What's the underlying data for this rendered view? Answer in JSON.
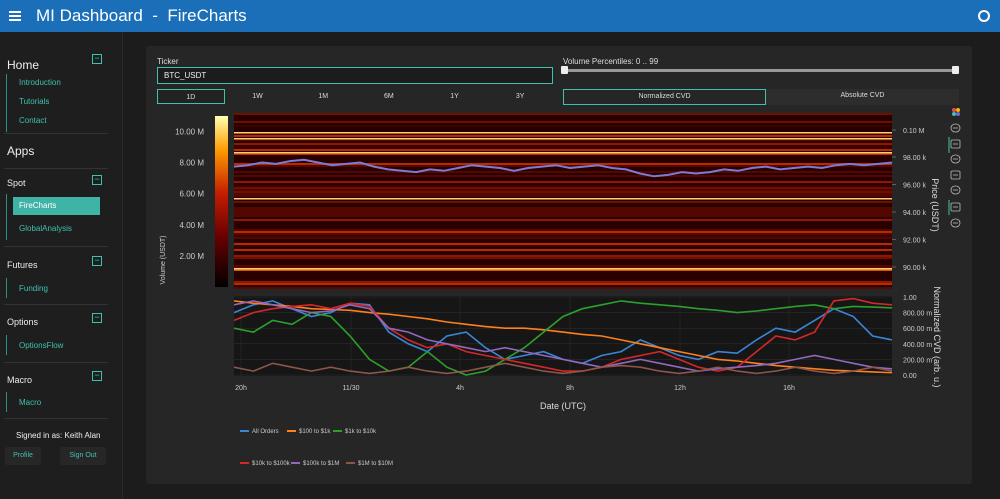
{
  "header": {
    "title": "MI Dashboard  -  FireCharts"
  },
  "sidebar": {
    "home": {
      "title": "Home",
      "links": [
        "Introduction",
        "Tutorials",
        "Contact"
      ]
    },
    "apps_title": "Apps",
    "spot": {
      "title": "Spot",
      "links": [
        "FireCharts",
        "GlobalAnalysis"
      ],
      "active": "FireCharts"
    },
    "futures": {
      "title": "Futures",
      "links": [
        "Funding"
      ]
    },
    "options": {
      "title": "Options",
      "links": [
        "OptionsFlow"
      ]
    },
    "macro": {
      "title": "Macro",
      "links": [
        "Macro"
      ]
    },
    "collapse_symbol": "−",
    "signed_in": "Signed in as: Keith Alan",
    "profile_label": "Profile",
    "signout_label": "Sign Out"
  },
  "controls": {
    "ticker_label": "Ticker",
    "ticker_value": "BTC_USDT",
    "percentile_label": "Volume Percentiles: 0 .. 99",
    "percentile_range": [
      0,
      99
    ],
    "timeframes": [
      "1D",
      "1W",
      "1M",
      "6M",
      "1Y",
      "3Y"
    ],
    "active_timeframe": "1D",
    "cvd_modes": [
      "Normalized CVD",
      "Absolute CVD"
    ],
    "active_cvd": "Normalized CVD"
  },
  "colors": {
    "accent": "#3fc1b0",
    "header": "#1a6fb8",
    "panel": "#262626"
  },
  "chart_data": [
    {
      "type": "heatmap",
      "description_axis": "price/time orderbook liquidity heatmap",
      "colorbar": {
        "label": "Volume (USDT)",
        "ticks": [
          "10.00 M",
          "8.00 M",
          "6.00 M",
          "4.00 M",
          "2.00 M"
        ],
        "range": [
          0,
          11
        ]
      },
      "ylabel": "Price (USDT)",
      "yticks": [
        "0.10 M",
        "98.00 k",
        "96.00 k",
        "94.00 k",
        "92.00 k",
        "90.00 k"
      ],
      "price_line": [
        97.3,
        97.4,
        97.6,
        97.5,
        97.7,
        97.8,
        97.6,
        97.4,
        97.5,
        97.6,
        97.3,
        97.1,
        97.0,
        96.9,
        97.1,
        97.0,
        97.2,
        97.4,
        97.3,
        97.2,
        97.0,
        97.2,
        97.3,
        97.4,
        97.2,
        97.3,
        97.4,
        97.2,
        97.1,
        96.8,
        96.6,
        96.7,
        96.9,
        96.8,
        96.9,
        97.1,
        97.0,
        97.2,
        97.3,
        97.1,
        97.2,
        97.3,
        97.2,
        97.4,
        97.5,
        97.4,
        97.5,
        97.6
      ]
    },
    {
      "type": "line",
      "ylabel": "Normalized CVD (arb. u.)",
      "xlabel": "Date (UTC)",
      "xticks": [
        "20h",
        "11/30",
        "4h",
        "8h",
        "12h",
        "16h"
      ],
      "yticks": [
        "1.00",
        "800.00 m",
        "600.00 m",
        "400.00 m",
        "200.00 m",
        "0.00"
      ],
      "ylim": [
        0,
        1
      ],
      "legend": "bottom",
      "series": [
        {
          "name": "All Orders",
          "color": "#3a86d6",
          "values": [
            0.8,
            0.9,
            0.95,
            0.85,
            0.75,
            0.8,
            0.92,
            0.9,
            0.55,
            0.4,
            0.3,
            0.5,
            0.55,
            0.35,
            0.2,
            0.25,
            0.3,
            0.2,
            0.15,
            0.25,
            0.3,
            0.45,
            0.35,
            0.25,
            0.2,
            0.3,
            0.28,
            0.45,
            0.6,
            0.55,
            0.7,
            0.85,
            0.75,
            0.5,
            0.45
          ]
        },
        {
          "name": "$100 to $1k",
          "color": "#ff7f1a",
          "values": [
            0.95,
            0.92,
            0.9,
            0.88,
            0.85,
            0.84,
            0.83,
            0.8,
            0.78,
            0.75,
            0.72,
            0.68,
            0.65,
            0.62,
            0.6,
            0.6,
            0.58,
            0.55,
            0.52,
            0.5,
            0.45,
            0.4,
            0.35,
            0.3,
            0.25,
            0.2,
            0.18,
            0.15,
            0.12,
            0.1,
            0.08,
            0.06,
            0.05,
            0.04,
            0.03
          ]
        },
        {
          "name": "$1k to $10k",
          "color": "#2ca02c",
          "values": [
            0.6,
            0.55,
            0.7,
            0.65,
            0.8,
            0.75,
            0.5,
            0.2,
            0.05,
            0.1,
            0.3,
            0.1,
            0.0,
            0.05,
            0.2,
            0.35,
            0.55,
            0.75,
            0.85,
            0.9,
            0.95,
            0.92,
            0.9,
            0.88,
            0.85,
            0.83,
            0.8,
            0.82,
            0.85,
            0.88,
            0.9,
            0.85,
            0.88,
            0.87,
            0.86
          ]
        },
        {
          "name": "$10k to $100k",
          "color": "#d62728",
          "values": [
            0.7,
            0.8,
            0.85,
            0.88,
            0.9,
            0.85,
            0.92,
            0.88,
            0.6,
            0.45,
            0.35,
            0.4,
            0.3,
            0.25,
            0.2,
            0.15,
            0.1,
            0.05,
            0.05,
            0.1,
            0.2,
            0.25,
            0.3,
            0.2,
            0.1,
            0.05,
            0.1,
            0.3,
            0.5,
            0.45,
            0.55,
            0.95,
            0.98,
            0.92,
            0.9
          ]
        },
        {
          "name": "$100k to $1M",
          "color": "#9467bd",
          "values": [
            0.9,
            0.95,
            0.9,
            0.85,
            0.8,
            0.82,
            0.9,
            0.85,
            0.6,
            0.55,
            0.45,
            0.4,
            0.35,
            0.3,
            0.35,
            0.3,
            0.25,
            0.2,
            0.15,
            0.1,
            0.15,
            0.2,
            0.15,
            0.1,
            0.05,
            0.08,
            0.1,
            0.12,
            0.15,
            0.2,
            0.25,
            0.2,
            0.15,
            0.1,
            0.08
          ]
        },
        {
          "name": "$1M to $10M",
          "color": "#8c564b",
          "values": [
            0.1,
            0.05,
            0.15,
            0.1,
            0.05,
            0.1,
            0.05,
            0.02,
            0.05,
            0.1,
            0.05,
            0.02,
            0.05,
            0.1,
            0.15,
            0.1,
            0.05,
            0.02,
            0.05,
            0.1,
            0.12,
            0.1,
            0.05,
            0.02,
            0.05,
            0.1,
            0.05,
            0.02,
            0.05,
            0.1,
            0.05,
            0.02,
            0.05,
            0.1,
            0.05
          ]
        }
      ]
    }
  ],
  "toolbar_icons": [
    "plotly-logo-icon",
    "pan-icon",
    "zoom-icon",
    "box-select-icon",
    "autoscale-icon",
    "camera-icon",
    "hover-icon",
    "reset-icon"
  ]
}
